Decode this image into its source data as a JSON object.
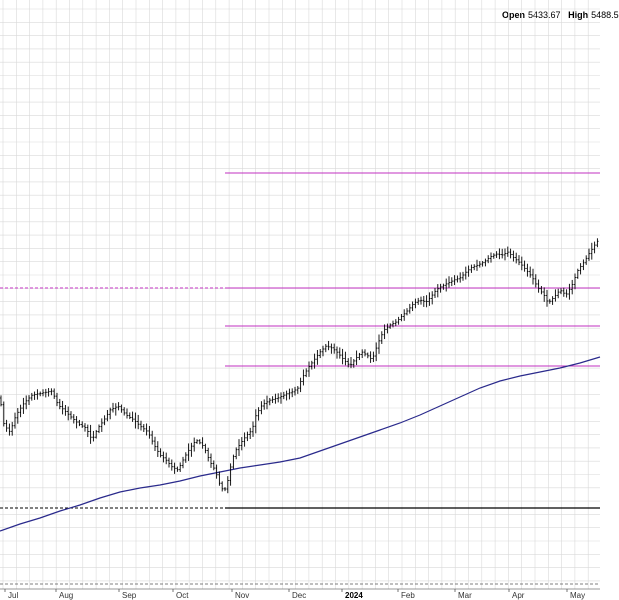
{
  "header": {
    "open_label": "Open",
    "open_value": "5433.67",
    "high_label": "High",
    "high_value": "5488.5"
  },
  "chart_data": {
    "type": "ohlc-bar",
    "x_ticks": [
      {
        "label": "Jul",
        "bold": false
      },
      {
        "label": "Aug",
        "bold": false
      },
      {
        "label": "Sep",
        "bold": false
      },
      {
        "label": "Oct",
        "bold": false
      },
      {
        "label": "Nov",
        "bold": false
      },
      {
        "label": "Dec",
        "bold": false
      },
      {
        "label": "2024",
        "bold": true
      },
      {
        "label": "Feb",
        "bold": false
      },
      {
        "label": "Mar",
        "bold": false
      },
      {
        "label": "Apr",
        "bold": false
      },
      {
        "label": "May",
        "bold": false
      }
    ],
    "colors": {
      "price": "#000000",
      "moving_average": "#2a2a8c",
      "levels": "#c030c0",
      "support": "#000000",
      "grid": "#d9d9d9"
    },
    "price_path": [
      [
        0,
        398
      ],
      [
        4,
        425
      ],
      [
        10,
        432
      ],
      [
        16,
        415
      ],
      [
        24,
        403
      ],
      [
        32,
        395
      ],
      [
        42,
        393
      ],
      [
        52,
        391
      ],
      [
        58,
        405
      ],
      [
        64,
        410
      ],
      [
        72,
        418
      ],
      [
        80,
        425
      ],
      [
        86,
        428
      ],
      [
        92,
        440
      ],
      [
        98,
        428
      ],
      [
        104,
        420
      ],
      [
        110,
        410
      ],
      [
        118,
        406
      ],
      [
        126,
        415
      ],
      [
        134,
        420
      ],
      [
        140,
        426
      ],
      [
        148,
        432
      ],
      [
        154,
        445
      ],
      [
        160,
        455
      ],
      [
        166,
        460
      ],
      [
        172,
        467
      ],
      [
        178,
        470
      ],
      [
        184,
        458
      ],
      [
        190,
        448
      ],
      [
        196,
        440
      ],
      [
        200,
        443
      ],
      [
        204,
        447
      ],
      [
        210,
        462
      ],
      [
        215,
        470
      ],
      [
        220,
        485
      ],
      [
        224,
        492
      ],
      [
        228,
        480
      ],
      [
        232,
        460
      ],
      [
        236,
        450
      ],
      [
        240,
        444
      ],
      [
        246,
        436
      ],
      [
        252,
        430
      ],
      [
        256,
        415
      ],
      [
        262,
        405
      ],
      [
        270,
        400
      ],
      [
        278,
        398
      ],
      [
        286,
        394
      ],
      [
        292,
        392
      ],
      [
        298,
        388
      ],
      [
        302,
        378
      ],
      [
        308,
        368
      ],
      [
        314,
        360
      ],
      [
        320,
        352
      ],
      [
        326,
        346
      ],
      [
        332,
        348
      ],
      [
        338,
        353
      ],
      [
        344,
        360
      ],
      [
        350,
        366
      ],
      [
        356,
        358
      ],
      [
        362,
        352
      ],
      [
        368,
        356
      ],
      [
        372,
        360
      ],
      [
        378,
        343
      ],
      [
        384,
        330
      ],
      [
        390,
        325
      ],
      [
        396,
        322
      ],
      [
        402,
        316
      ],
      [
        408,
        310
      ],
      [
        414,
        303
      ],
      [
        420,
        300
      ],
      [
        426,
        302
      ],
      [
        430,
        298
      ],
      [
        436,
        290
      ],
      [
        442,
        286
      ],
      [
        448,
        283
      ],
      [
        454,
        280
      ],
      [
        460,
        278
      ],
      [
        466,
        272
      ],
      [
        472,
        267
      ],
      [
        478,
        265
      ],
      [
        484,
        262
      ],
      [
        490,
        257
      ],
      [
        496,
        254
      ],
      [
        502,
        255
      ],
      [
        508,
        252
      ],
      [
        514,
        258
      ],
      [
        520,
        263
      ],
      [
        526,
        270
      ],
      [
        532,
        277
      ],
      [
        538,
        288
      ],
      [
        544,
        295
      ],
      [
        548,
        303
      ],
      [
        554,
        297
      ],
      [
        560,
        290
      ],
      [
        566,
        295
      ],
      [
        572,
        285
      ],
      [
        578,
        270
      ],
      [
        584,
        262
      ],
      [
        590,
        252
      ],
      [
        596,
        243
      ],
      [
        600,
        238
      ]
    ],
    "moving_average_path": [
      [
        0,
        531
      ],
      [
        20,
        524
      ],
      [
        40,
        518
      ],
      [
        60,
        511
      ],
      [
        80,
        505
      ],
      [
        100,
        498
      ],
      [
        120,
        492
      ],
      [
        140,
        488
      ],
      [
        160,
        485
      ],
      [
        180,
        481
      ],
      [
        200,
        476
      ],
      [
        220,
        472
      ],
      [
        240,
        468
      ],
      [
        260,
        465
      ],
      [
        280,
        462
      ],
      [
        300,
        458
      ],
      [
        320,
        451
      ],
      [
        340,
        444
      ],
      [
        360,
        437
      ],
      [
        380,
        430
      ],
      [
        400,
        423
      ],
      [
        420,
        415
      ],
      [
        440,
        406
      ],
      [
        460,
        397
      ],
      [
        480,
        388
      ],
      [
        500,
        381
      ],
      [
        520,
        376
      ],
      [
        540,
        372
      ],
      [
        560,
        368
      ],
      [
        580,
        363
      ],
      [
        600,
        357
      ]
    ],
    "horizontal_levels": [
      {
        "x_start": 225,
        "y": 173
      },
      {
        "x_start": 0,
        "y": 288,
        "dashed_left_until": 225
      },
      {
        "x_start": 225,
        "y": 326
      },
      {
        "x_start": 225,
        "y": 366
      }
    ],
    "support_line": {
      "y": 508,
      "dashed_until": 225
    },
    "bottom_dashed": {
      "y": 584
    }
  }
}
